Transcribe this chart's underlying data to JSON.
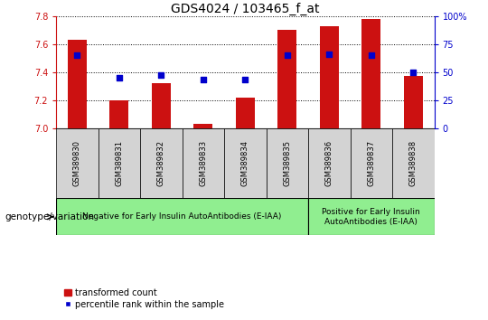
{
  "title": "GDS4024 / 103465_f_at",
  "samples": [
    "GSM389830",
    "GSM389831",
    "GSM389832",
    "GSM389833",
    "GSM389834",
    "GSM389835",
    "GSM389836",
    "GSM389837",
    "GSM389838"
  ],
  "bar_values": [
    7.63,
    7.2,
    7.32,
    7.03,
    7.22,
    7.7,
    7.73,
    7.78,
    7.37
  ],
  "percentile_values": [
    65,
    45,
    47,
    43,
    43,
    65,
    66,
    65,
    50
  ],
  "ylim_left": [
    7.0,
    7.8
  ],
  "ylim_right": [
    0,
    100
  ],
  "yticks_left": [
    7.0,
    7.2,
    7.4,
    7.6,
    7.8
  ],
  "yticks_right": [
    0,
    25,
    50,
    75,
    100
  ],
  "bar_color": "#cc1111",
  "scatter_color": "#0000cc",
  "bar_width": 0.45,
  "group1_label": "Negative for Early Insulin AutoAntibodies (E-IAA)",
  "group2_label": "Positive for Early Insulin\nAutoAntibodies (E-IAA)",
  "group1_samples": 6,
  "group2_samples": 3,
  "group_bg_color": "#90ee90",
  "tick_bg_color": "#d3d3d3",
  "legend_bar_label": "transformed count",
  "legend_scatter_label": "percentile rank within the sample",
  "genotype_label": "genotype/variation",
  "title_fontsize": 10,
  "tick_fontsize": 7,
  "sample_fontsize": 6,
  "group_fontsize": 6.5,
  "legend_fontsize": 7,
  "genotype_fontsize": 7.5
}
